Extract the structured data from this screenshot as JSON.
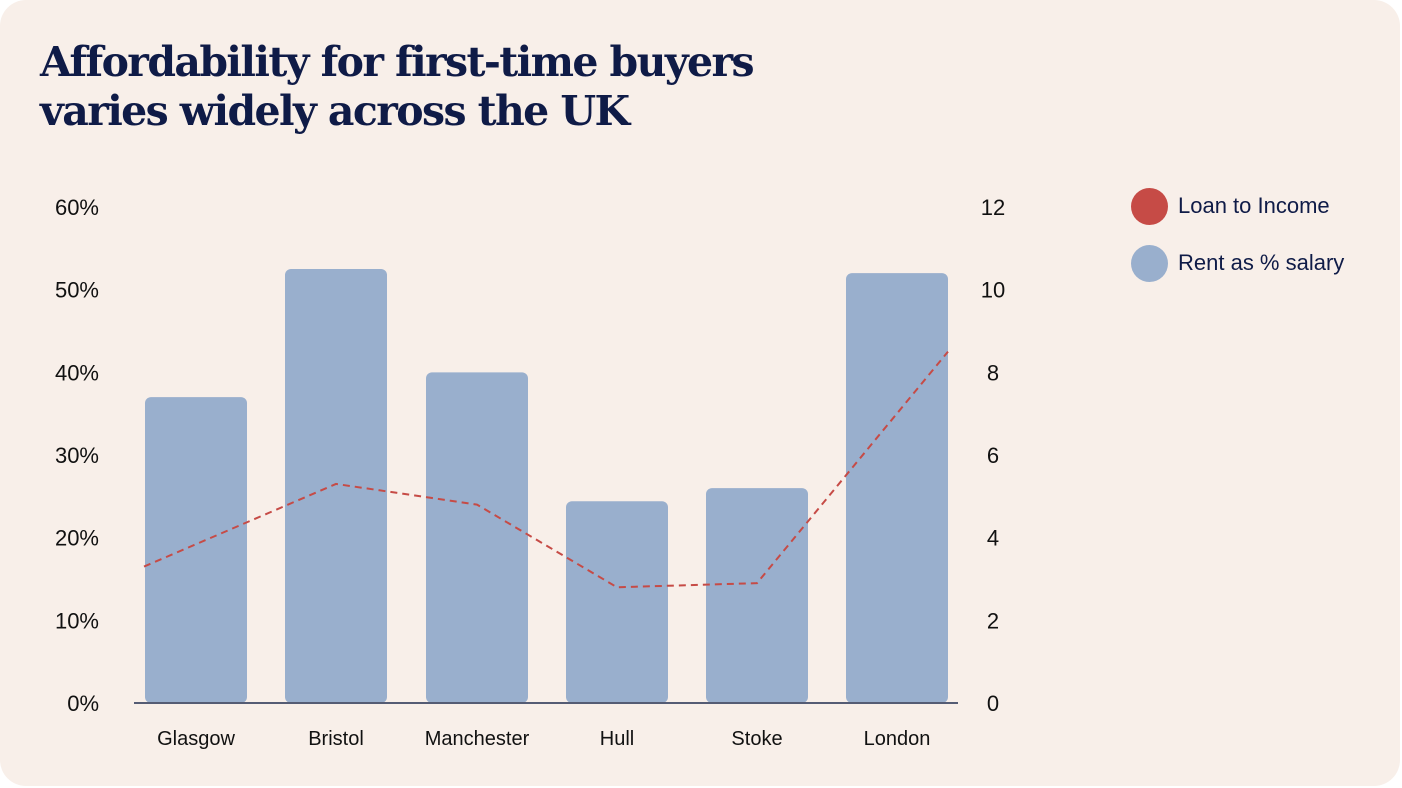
{
  "title": "Affordability for first-time buyers varies widely across  the UK",
  "colors": {
    "background": "#f8efe9",
    "title": "#0f1b47",
    "bar": "#99afcd",
    "line": "#c64b46",
    "axis": "#555c74"
  },
  "legend": {
    "items": [
      {
        "label": "Loan to Income",
        "color": "#c64b46",
        "shape": "circle"
      },
      {
        "label": "Rent as % salary",
        "color": "#99afcd",
        "shape": "circle"
      }
    ],
    "placement": "top-right"
  },
  "chart_data": {
    "type": "bar",
    "categories": [
      "Glasgow",
      "Bristol",
      "Manchester",
      "Hull",
      "Stoke",
      "London"
    ],
    "series": [
      {
        "name": "Rent as % salary",
        "type": "bar",
        "axis": "left",
        "values": [
          37,
          52.5,
          40,
          24.4,
          26,
          52
        ]
      },
      {
        "name": "Loan to Income",
        "type": "line",
        "axis": "right",
        "line_style": "dashed",
        "values": [
          3.3,
          5.3,
          4.8,
          2.8,
          2.9,
          8.5
        ]
      }
    ],
    "y_left": {
      "ylim": [
        0,
        60
      ],
      "ticks": [
        0,
        10,
        20,
        30,
        40,
        50,
        60
      ],
      "tick_labels": [
        "0%",
        "10%",
        "20%",
        "30%",
        "40%",
        "50%",
        "60%"
      ]
    },
    "y_right": {
      "ylim": [
        0,
        12
      ],
      "ticks": [
        0,
        2,
        4,
        6,
        8,
        10,
        12
      ],
      "tick_labels": [
        "0",
        "2",
        "4",
        "6",
        "8",
        "10",
        "12"
      ]
    },
    "grid": false,
    "xlabel": "",
    "ylabel": ""
  }
}
